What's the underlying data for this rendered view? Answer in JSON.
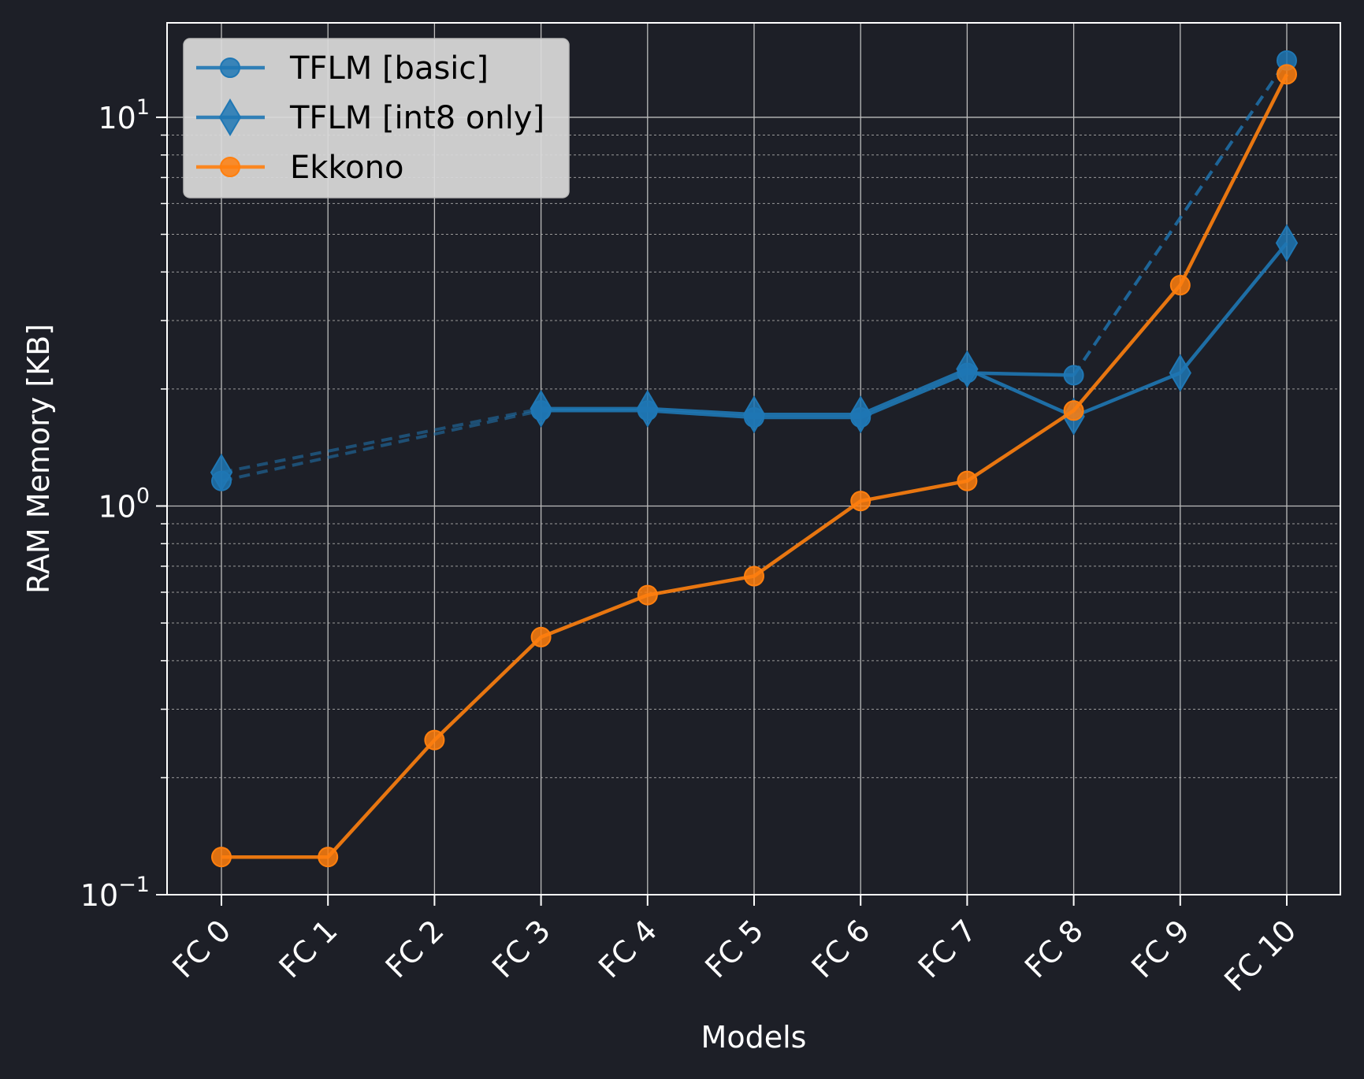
{
  "chart_data": {
    "type": "line",
    "categories": [
      "FC 0",
      "FC 1",
      "FC 2",
      "FC 3",
      "FC 4",
      "FC 5",
      "FC 6",
      "FC 7",
      "FC 8",
      "FC 9",
      "FC 10"
    ],
    "xlabel": "Models",
    "ylabel": "RAM Memory [KB]",
    "yscale": "log",
    "ylim": [
      0.1,
      17.5
    ],
    "y_ticks": [
      {
        "base": "10",
        "exp": "−1",
        "value": 0.1
      },
      {
        "base": "10",
        "exp": "0",
        "value": 1
      },
      {
        "base": "10",
        "exp": "1",
        "value": 10
      }
    ],
    "grid": true,
    "legend_position": "top-left",
    "series": [
      {
        "name": "TFLM [basic]",
        "color": "#1f77b4",
        "marker": "circle",
        "values": [
          1.16,
          null,
          null,
          1.76,
          1.76,
          1.69,
          1.69,
          2.2,
          2.17,
          null,
          14.0
        ],
        "dashed_gaps": true
      },
      {
        "name": "TFLM [int8 only]",
        "color": "#1f77b4",
        "marker": "diamond",
        "values": [
          1.22,
          null,
          null,
          1.78,
          1.78,
          1.72,
          1.72,
          2.25,
          1.7,
          2.2,
          4.75
        ],
        "dashed_gaps": true
      },
      {
        "name": "Ekkono",
        "color": "#ff7f0e",
        "marker": "circle",
        "values": [
          0.125,
          0.125,
          0.25,
          0.46,
          0.59,
          0.66,
          1.03,
          1.16,
          1.76,
          3.7,
          12.9
        ]
      }
    ]
  }
}
